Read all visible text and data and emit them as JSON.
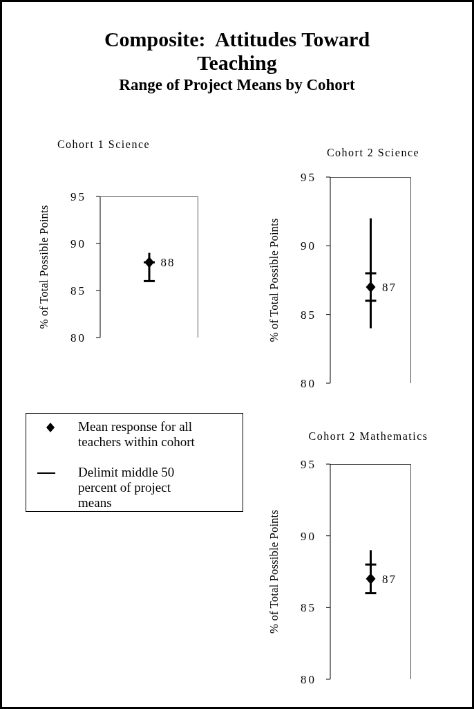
{
  "chart_data": [
    {
      "type": "other",
      "title": "Composite:  Attitudes Toward Teaching",
      "subtitle": "Range of Project Means by Cohort"
    },
    {
      "type": "box",
      "title": "Cohort 1 Science",
      "ylabel": "% of Total Possible Points",
      "categories": [
        null
      ],
      "boxes": [
        {
          "low": 86,
          "q1": 86,
          "q3": 88,
          "high": 89,
          "mean": 88
        }
      ],
      "value_labels": [
        "88"
      ],
      "ylim": [
        80,
        95
      ],
      "yticks": [
        80,
        85,
        90,
        95
      ],
      "color": "#000000"
    },
    {
      "type": "box",
      "title": "Cohort 2 Science",
      "ylabel": "% of Total Possible Points",
      "categories": [
        null
      ],
      "boxes": [
        {
          "low": 84,
          "q1": 86,
          "q3": 88,
          "high": 92,
          "mean": 87
        }
      ],
      "value_labels": [
        "87"
      ],
      "ylim": [
        80,
        95
      ],
      "yticks": [
        80,
        85,
        90,
        95
      ],
      "color": "#000000"
    },
    {
      "type": "other",
      "annotations": [
        "Mean response for all teachers within cohort",
        "Delimit middle 50 percent of project means"
      ]
    },
    {
      "type": "box",
      "title": "Cohort 2 Mathematics",
      "ylabel": "% of Total Possible Points",
      "categories": [
        null
      ],
      "boxes": [
        {
          "low": 86,
          "q1": 86,
          "q3": 88,
          "high": 89,
          "mean": 87
        }
      ],
      "value_labels": [
        "87"
      ],
      "ylim": [
        80,
        95
      ],
      "yticks": [
        80,
        85,
        90,
        95
      ],
      "color": "#000000"
    }
  ]
}
